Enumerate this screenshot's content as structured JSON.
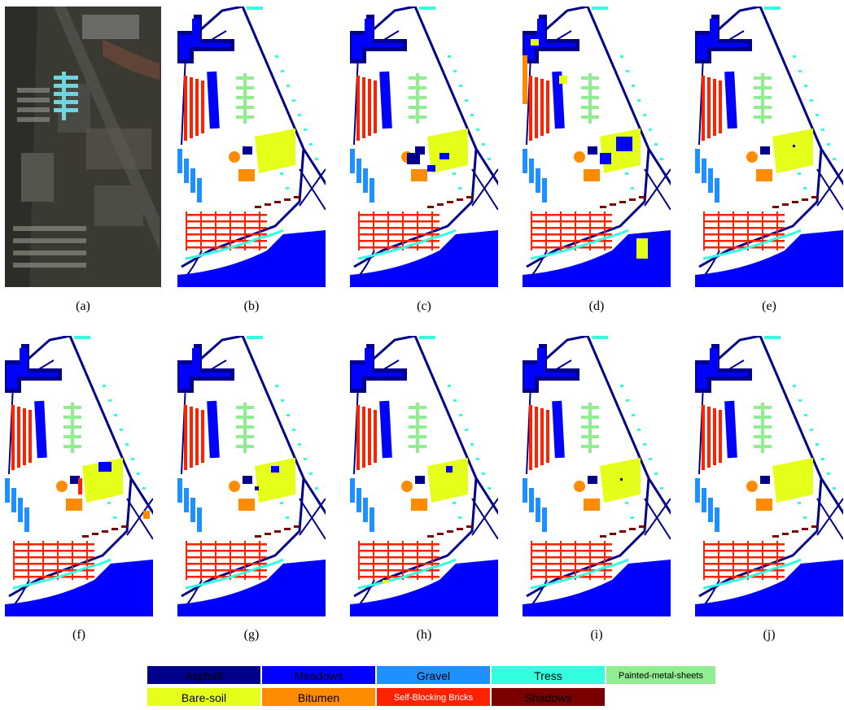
{
  "panels": [
    {
      "id": "a",
      "caption": "(a)",
      "kind": "photo"
    },
    {
      "id": "b",
      "caption": "(b)",
      "kind": "map"
    },
    {
      "id": "c",
      "caption": "(c)",
      "kind": "map"
    },
    {
      "id": "d",
      "caption": "(d)",
      "kind": "map"
    },
    {
      "id": "e",
      "caption": "(e)",
      "kind": "map"
    },
    {
      "id": "f",
      "caption": "(f)",
      "kind": "map"
    },
    {
      "id": "g",
      "caption": "(g)",
      "kind": "map"
    },
    {
      "id": "h",
      "caption": "(h)",
      "kind": "map"
    },
    {
      "id": "i",
      "caption": "(i)",
      "kind": "map"
    },
    {
      "id": "j",
      "caption": "(j)",
      "kind": "map"
    }
  ],
  "legend": [
    {
      "label": "Asphalt",
      "color": "#00008b",
      "text_color": "#000000"
    },
    {
      "label": "Meadows",
      "color": "#0000ff",
      "text_color": "#000000"
    },
    {
      "label": "Gravel",
      "color": "#1e90ff",
      "text_color": "#000000"
    },
    {
      "label": "Tress",
      "color": "#33ffe0",
      "text_color": "#000000"
    },
    {
      "label": "Painted-metal-sheets",
      "color": "#90ee90",
      "text_color": "#000000"
    },
    {
      "label": "Bare-soil",
      "color": "#e5ff1a",
      "text_color": "#000000"
    },
    {
      "label": "Bitumen",
      "color": "#ff8c00",
      "text_color": "#000000"
    },
    {
      "label": "Self-Blocking Bricks",
      "color": "#ff2200",
      "text_color": "#ffffff"
    },
    {
      "label": "Shadows",
      "color": "#7a0000",
      "text_color": "#000000"
    }
  ]
}
